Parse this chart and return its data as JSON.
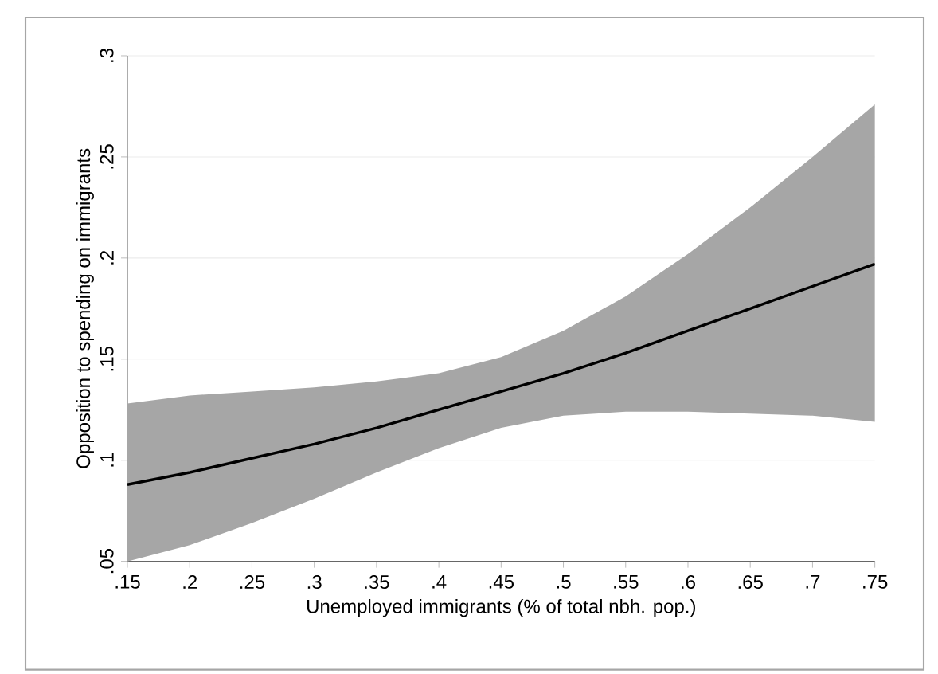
{
  "chart_data": {
    "type": "line",
    "xlabel": "Unemployed immigrants (% of total nbh. pop.)",
    "ylabel": "Opposition to spending on immigrants",
    "x": [
      0.15,
      0.2,
      0.25,
      0.3,
      0.35,
      0.4,
      0.45,
      0.5,
      0.55,
      0.6,
      0.65,
      0.7,
      0.75
    ],
    "series": [
      {
        "color": "#000000",
        "values": [
          0.088,
          0.094,
          0.101,
          0.108,
          0.116,
          0.125,
          0.134,
          0.143,
          0.153,
          0.164,
          0.175,
          0.186,
          0.197
        ],
        "lower": [
          0.05,
          0.058,
          0.069,
          0.081,
          0.094,
          0.106,
          0.116,
          0.122,
          0.124,
          0.124,
          0.123,
          0.122,
          0.119
        ],
        "upper": [
          0.128,
          0.132,
          0.134,
          0.136,
          0.139,
          0.143,
          0.151,
          0.164,
          0.181,
          0.202,
          0.225,
          0.25,
          0.276
        ]
      }
    ],
    "xlim": [
      0.15,
      0.75
    ],
    "ylim": [
      0.05,
      0.3
    ],
    "xticks": [
      {
        "value": 0.15,
        "label": ".15"
      },
      {
        "value": 0.2,
        "label": ".2"
      },
      {
        "value": 0.25,
        "label": ".25"
      },
      {
        "value": 0.3,
        "label": ".3"
      },
      {
        "value": 0.35,
        "label": ".35"
      },
      {
        "value": 0.4,
        "label": ".4"
      },
      {
        "value": 0.45,
        "label": ".45"
      },
      {
        "value": 0.5,
        "label": ".5"
      },
      {
        "value": 0.55,
        "label": ".55"
      },
      {
        "value": 0.6,
        "label": ".6"
      },
      {
        "value": 0.65,
        "label": ".65"
      },
      {
        "value": 0.7,
        "label": ".7"
      },
      {
        "value": 0.75,
        "label": ".75"
      }
    ],
    "yticks": [
      {
        "value": 0.05,
        "label": ".05"
      },
      {
        "value": 0.1,
        "label": ".1"
      },
      {
        "value": 0.15,
        "label": ".15"
      },
      {
        "value": 0.2,
        "label": ".2"
      },
      {
        "value": 0.25,
        "label": ".25"
      },
      {
        "value": 0.3,
        "label": ".3"
      }
    ],
    "grid": "y",
    "marker": "none",
    "line_style": "solid"
  }
}
